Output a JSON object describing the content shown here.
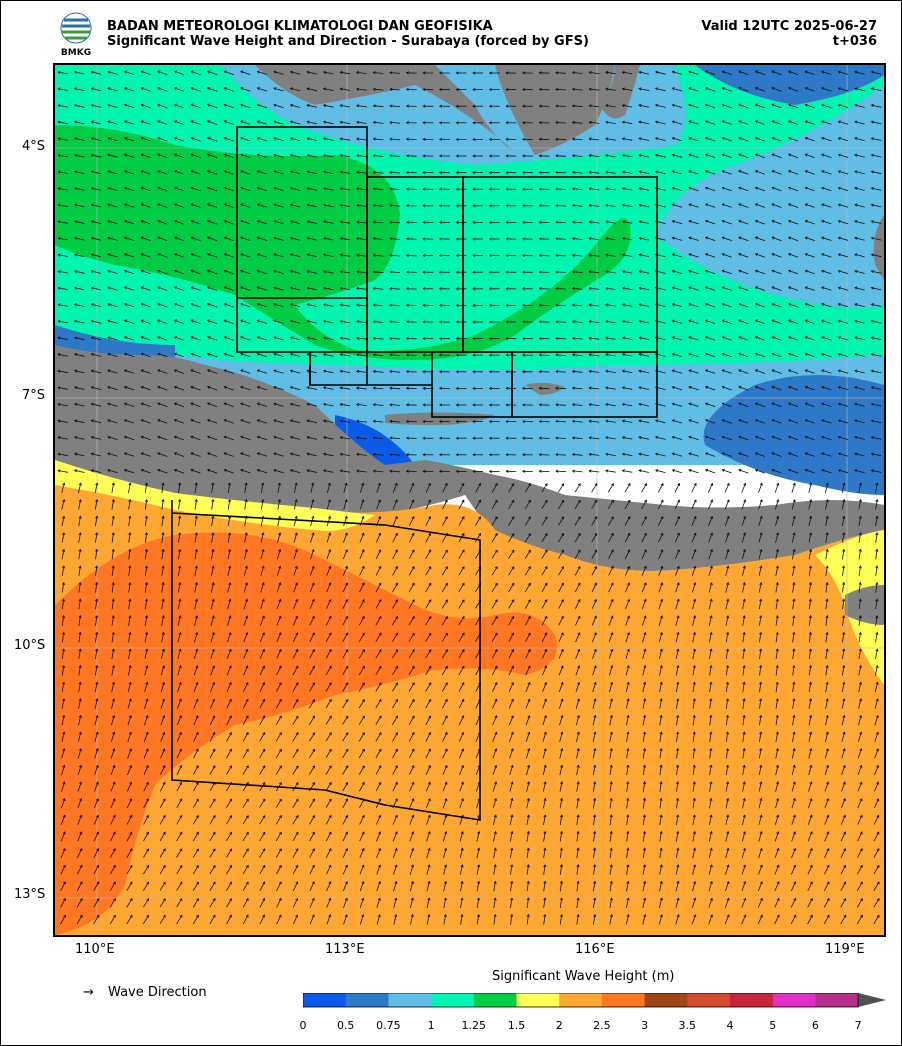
{
  "header": {
    "agency": "BADAN METEOROLOGI KLIMATOLOGI DAN GEOFISIKA",
    "product": "Significant Wave Height and Direction - Surabaya (forced by GFS)",
    "valid": "Valid 12UTC 2025-06-27",
    "lead": "t+036",
    "logo_text": "BMKG"
  },
  "axes": {
    "lat_labels": [
      "4°S",
      "7°S",
      "10°S",
      "13°S"
    ],
    "lon_labels": [
      "110°E",
      "113°E",
      "116°E",
      "119°E"
    ]
  },
  "legend": {
    "arrow_symbol": "→",
    "arrow_label": "Wave Direction"
  },
  "colorbar": {
    "title": "Significant Wave Height (m)",
    "ticks": [
      "0",
      "0.5",
      "0.75",
      "1",
      "1.25",
      "1.5",
      "2",
      "2.5",
      "3",
      "3.5",
      "4",
      "5",
      "6",
      "7"
    ],
    "colors": [
      "#0a5be8",
      "#2e78c8",
      "#5fbde6",
      "#00f5b0",
      "#00cc44",
      "#ffff55",
      "#ffa733",
      "#ff7722",
      "#a0471a",
      "#d04a30",
      "#c8263a",
      "#e030c8",
      "#b4308c",
      "#505050"
    ]
  },
  "map_colors": {
    "land": "#808080",
    "sea_frame": "#000000"
  }
}
